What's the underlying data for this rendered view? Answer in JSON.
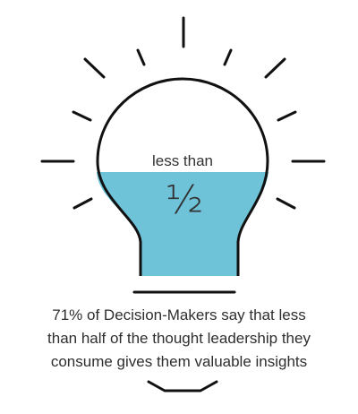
{
  "bulb": {
    "label_top": "less than",
    "label_fraction": "½",
    "fill_fraction": 0.5
  },
  "caption": {
    "lines": [
      "71% of Decision-Makers say that less",
      "than half of the thought leadership they",
      "consume gives them valuable insights"
    ]
  },
  "colors": {
    "fill": "#6ec3d8",
    "outline": "#111111",
    "text": "#2e2e2e"
  }
}
